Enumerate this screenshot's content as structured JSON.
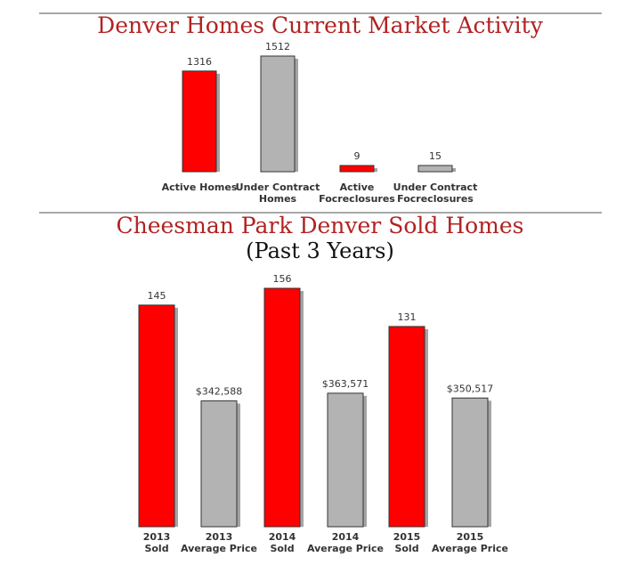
{
  "charts": {
    "market": {
      "title": "Denver Homes Current Market Activity"
    },
    "sold": {
      "title": "Cheesman Park Denver Sold Homes",
      "subtitle": "(Past 3 Years)"
    }
  },
  "colors": {
    "red": "#ff0000",
    "gray": "#b3b3b3",
    "title": "#b22222"
  },
  "chart_data": [
    {
      "type": "bar",
      "title": "Denver Homes Current Market Activity",
      "categories": [
        [
          "Active Homes"
        ],
        [
          "Under Contract",
          "Homes"
        ],
        [
          "Active",
          "Focreclosures"
        ],
        [
          "Under Contract",
          "Focreclosures"
        ]
      ],
      "values": [
        1316,
        1512,
        9,
        15
      ],
      "value_labels": [
        "1316",
        "1512",
        "9",
        "15"
      ],
      "colors": [
        "#ff0000",
        "#b3b3b3",
        "#ff0000",
        "#b3b3b3"
      ],
      "ylim": [
        0,
        1600
      ],
      "grid": false,
      "legend": "none"
    },
    {
      "type": "bar",
      "title": "Cheesman Park Denver Sold Homes",
      "subtitle": "(Past 3 Years)",
      "categories": [
        [
          "2013",
          "Sold"
        ],
        [
          "2013",
          "Average Price"
        ],
        [
          "2014",
          "Sold"
        ],
        [
          "2014",
          "Average Price"
        ],
        [
          "2015",
          "Sold"
        ],
        [
          "2015",
          "Average Price"
        ]
      ],
      "values": [
        145,
        342588,
        156,
        363571,
        131,
        350517
      ],
      "value_labels": [
        "145",
        "$342,588",
        "156",
        "$363,571",
        "131",
        "$350,517"
      ],
      "colors": [
        "#ff0000",
        "#b3b3b3",
        "#ff0000",
        "#b3b3b3",
        "#ff0000",
        "#b3b3b3"
      ],
      "grid": false,
      "legend": "none"
    }
  ]
}
